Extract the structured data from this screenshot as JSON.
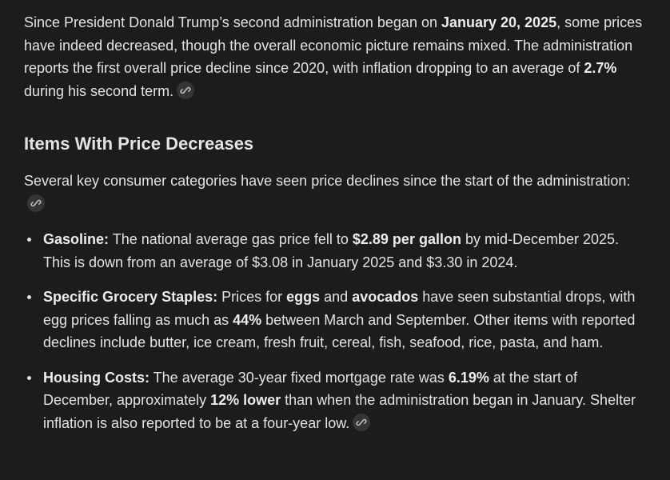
{
  "intro": {
    "segments": [
      "Since President Donald Trump’s second administration began on ",
      "January 20, 2025",
      ", some prices have indeed decreased, though the overall economic picture remains mixed. The administration reports the first overall price decline since 2020, with inflation dropping to an average of ",
      "2.7%",
      " during his second term."
    ]
  },
  "section": {
    "heading": "Items With Price Decreases",
    "lead": "Several key consumer categories have seen price declines since the start of the administration:",
    "items": [
      {
        "segments": [
          "Gasoline:",
          " The national average gas price fell to ",
          "$2.89 per gallon",
          " by mid-December 2025. This is down from an average of $3.08 in January 2025 and $3.30 in 2024."
        ]
      },
      {
        "segments": [
          "Specific Grocery Staples:",
          " Prices for ",
          "eggs",
          " and ",
          "avocados",
          " have seen substantial drops, with egg prices falling as much as ",
          "44%",
          " between March and September. Other items with reported declines include butter, ice cream, fresh fruit, cereal, fish, seafood, rice, pasta, and ham."
        ]
      },
      {
        "segments": [
          "Housing Costs:",
          " The average 30-year fixed mortgage rate was ",
          "6.19%",
          " at the start of December, approximately ",
          "12% lower",
          " than when the administration began in January. Shelter inflation is also reported to be at a four-year low."
        ]
      }
    ]
  }
}
